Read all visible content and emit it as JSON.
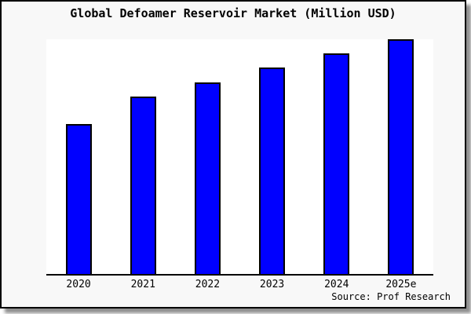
{
  "window": {
    "background": "#ffffff"
  },
  "card": {
    "background": "#f8f8f8",
    "border_color": "#000000",
    "shadow_color": "#8f8f8f"
  },
  "chart_data": {
    "type": "bar",
    "title": "Global Defoamer Reservoir Market (Million USD)",
    "categories": [
      "2020",
      "2021",
      "2022",
      "2023",
      "2024",
      "2025e"
    ],
    "values": [
      63.5,
      75.4,
      81.4,
      87.7,
      93.7,
      99.7
    ],
    "ylim": [
      0,
      100.3
    ],
    "value_note": "no y-axis labels shown in chart; values are relative bar heights, tallest bar (2025e) = 99.7",
    "xlabel": "",
    "ylabel": "",
    "grid": false,
    "legend": false,
    "bar_color": "#0000ff",
    "bar_edge_color": "#000000",
    "axis_color": "#000000"
  },
  "footer": {
    "source_label": "Source: Prof Research"
  }
}
